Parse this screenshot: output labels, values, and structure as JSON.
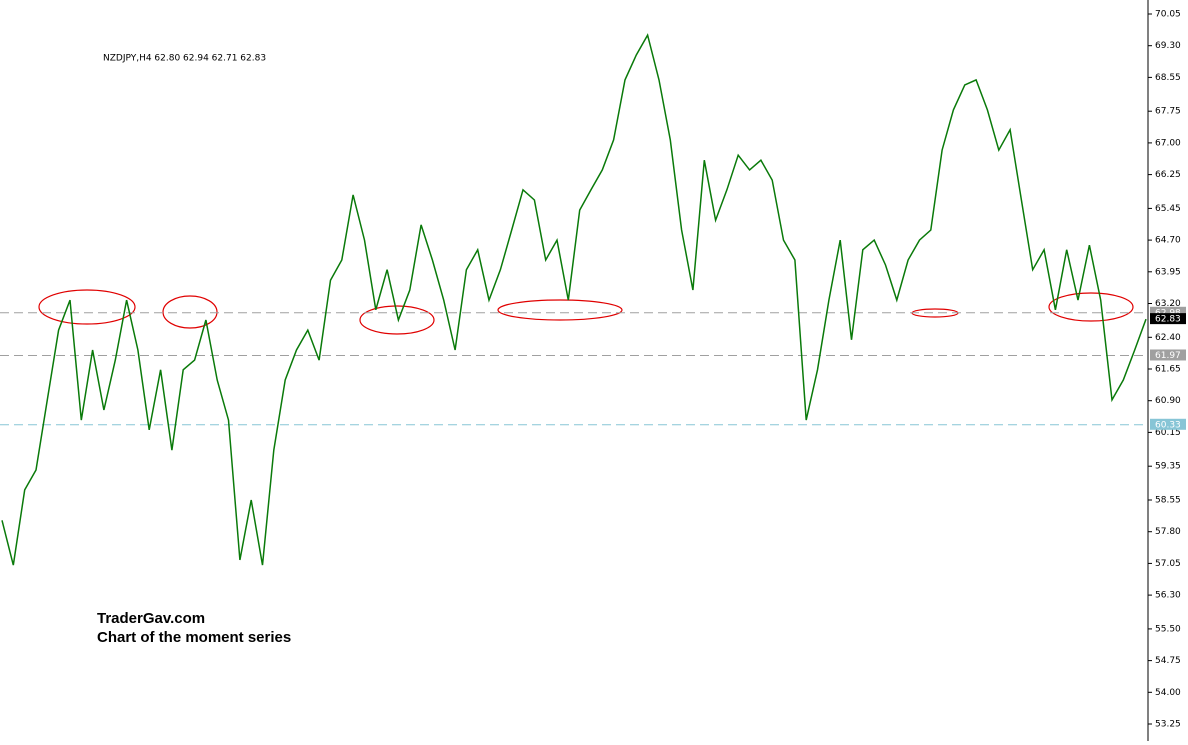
{
  "chart_data": {
    "type": "line",
    "header": "NZDJPY,H4  62.80 62.94 62.71 62.83",
    "watermark": [
      "TraderGav.com",
      "Chart of the moment series"
    ],
    "color": "#0a7a0a",
    "values": [
      58.07,
      57.01,
      58.79,
      59.26,
      60.92,
      62.57,
      63.28,
      60.44,
      62.1,
      60.68,
      61.86,
      63.28,
      62.1,
      60.21,
      61.63,
      59.73,
      61.63,
      61.86,
      62.81,
      61.39,
      60.44,
      57.13,
      58.55,
      57.01,
      59.73,
      61.39,
      62.1,
      62.57,
      61.86,
      63.75,
      64.23,
      65.77,
      64.7,
      63.05,
      64.0,
      62.81,
      63.52,
      65.06,
      64.23,
      63.28,
      62.1,
      64.0,
      64.47,
      63.28,
      64.0,
      64.94,
      65.89,
      65.65,
      64.23,
      64.7,
      63.28,
      65.41,
      65.89,
      66.36,
      67.07,
      68.49,
      69.08,
      69.55,
      68.49,
      67.07,
      64.94,
      63.52,
      66.59,
      65.17,
      65.89,
      66.71,
      66.36,
      66.59,
      66.12,
      64.7,
      64.23,
      60.44,
      61.63,
      63.28,
      64.7,
      62.34,
      64.47,
      64.7,
      64.11,
      63.28,
      64.23,
      64.7,
      64.94,
      66.83,
      67.78,
      68.37,
      68.49,
      67.78,
      66.83,
      67.31,
      65.65,
      64.0,
      64.47,
      63.05,
      64.47,
      63.28,
      64.58,
      63.28,
      60.92,
      61.39,
      62.1,
      62.83
    ],
    "ylim": [
      53.25,
      70.05
    ],
    "yticks": [
      70.05,
      {
        "value": 69.3,
        "label": "69.30"
      },
      68.55,
      67.75,
      {
        "value": 67,
        "label": "67.00"
      },
      66.25,
      65.45,
      {
        "value": 64.7,
        "label": "64.70"
      },
      63.95,
      {
        "value": 63.2,
        "label": "63.20"
      },
      {
        "value": 62.4,
        "label": "62.40"
      },
      61.65,
      {
        "value": 60.9,
        "label": "60.90"
      },
      60.15,
      59.35,
      58.55,
      {
        "value": 57.8,
        "label": "57.80"
      },
      57.05,
      {
        "value": 56.3,
        "label": "56.30"
      },
      {
        "value": 55.5,
        "label": "55.50"
      },
      54.75,
      {
        "value": 54,
        "label": "54.00"
      },
      53.25
    ],
    "price_lines": [
      {
        "value": 62.98,
        "color": "#a0a0a0"
      },
      {
        "value": 61.97,
        "color": "#a0a0a0"
      },
      {
        "value": 60.33,
        "color": "#87c5d6"
      }
    ],
    "last_price": 62.83
  }
}
